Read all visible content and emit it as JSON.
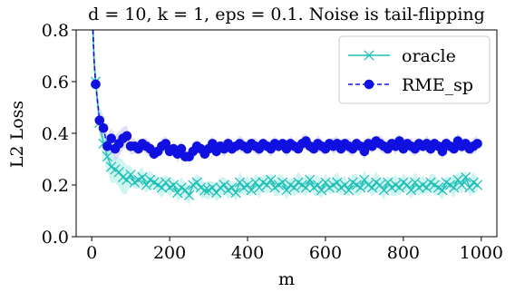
{
  "chart_data": {
    "type": "line",
    "title": "d = 10, k = 1, eps = 0.1. Noise is tail-flipping",
    "xlabel": "m",
    "ylabel": "L2 Loss",
    "xlim": [
      -40,
      1040
    ],
    "ylim": [
      0.0,
      0.8
    ],
    "xticks": [
      0,
      200,
      400,
      600,
      800,
      1000
    ],
    "yticks": [
      0.0,
      0.2,
      0.4,
      0.6,
      0.8
    ],
    "xtick_labels": [
      "0",
      "200",
      "400",
      "600",
      "800",
      "1000"
    ],
    "ytick_labels": [
      "0.0",
      "0.2",
      "0.4",
      "0.6",
      "0.8"
    ],
    "grid": false,
    "legend_position": "top-right",
    "x": [
      10,
      20,
      30,
      40,
      50,
      60,
      70,
      80,
      90,
      100,
      110,
      120,
      130,
      140,
      150,
      160,
      170,
      180,
      190,
      200,
      210,
      220,
      230,
      240,
      250,
      260,
      270,
      280,
      290,
      300,
      310,
      320,
      330,
      340,
      350,
      360,
      370,
      380,
      390,
      400,
      410,
      420,
      430,
      440,
      450,
      460,
      470,
      480,
      490,
      500,
      510,
      520,
      530,
      540,
      550,
      560,
      570,
      580,
      590,
      600,
      610,
      620,
      630,
      640,
      650,
      660,
      670,
      680,
      690,
      700,
      710,
      720,
      730,
      740,
      750,
      760,
      770,
      780,
      790,
      800,
      810,
      820,
      830,
      840,
      850,
      860,
      870,
      880,
      890,
      900,
      910,
      920,
      930,
      940,
      950,
      960,
      970,
      980,
      990
    ],
    "series": [
      {
        "name": "oracle",
        "color": "#20c0b8",
        "linestyle": "solid",
        "marker": "x",
        "values": [
          0.6,
          0.44,
          0.36,
          0.31,
          0.27,
          0.26,
          0.25,
          0.23,
          0.22,
          0.24,
          0.21,
          0.22,
          0.23,
          0.2,
          0.22,
          0.21,
          0.2,
          0.19,
          0.21,
          0.19,
          0.2,
          0.17,
          0.19,
          0.18,
          0.16,
          0.2,
          0.21,
          0.19,
          0.18,
          0.18,
          0.19,
          0.17,
          0.19,
          0.2,
          0.18,
          0.19,
          0.17,
          0.21,
          0.19,
          0.2,
          0.18,
          0.21,
          0.19,
          0.21,
          0.2,
          0.22,
          0.19,
          0.2,
          0.21,
          0.18,
          0.2,
          0.19,
          0.21,
          0.2,
          0.19,
          0.22,
          0.19,
          0.2,
          0.18,
          0.21,
          0.19,
          0.2,
          0.21,
          0.19,
          0.2,
          0.18,
          0.21,
          0.2,
          0.19,
          0.22,
          0.2,
          0.19,
          0.21,
          0.2,
          0.18,
          0.21,
          0.19,
          0.2,
          0.19,
          0.21,
          0.2,
          0.18,
          0.21,
          0.19,
          0.2,
          0.19,
          0.21,
          0.2,
          0.19,
          0.18,
          0.21,
          0.2,
          0.19,
          0.22,
          0.2,
          0.23,
          0.19,
          0.21,
          0.2
        ]
      },
      {
        "name": "RME_sp",
        "color": "#1010e0",
        "linestyle": "dashed",
        "marker": "o",
        "values": [
          0.59,
          0.45,
          0.42,
          0.35,
          0.38,
          0.34,
          0.36,
          0.38,
          0.39,
          0.35,
          0.35,
          0.34,
          0.36,
          0.35,
          0.34,
          0.32,
          0.33,
          0.35,
          0.36,
          0.33,
          0.34,
          0.32,
          0.34,
          0.31,
          0.31,
          0.33,
          0.35,
          0.34,
          0.32,
          0.34,
          0.36,
          0.33,
          0.35,
          0.34,
          0.36,
          0.34,
          0.35,
          0.36,
          0.35,
          0.34,
          0.36,
          0.35,
          0.34,
          0.36,
          0.35,
          0.34,
          0.36,
          0.35,
          0.36,
          0.34,
          0.36,
          0.35,
          0.34,
          0.36,
          0.37,
          0.35,
          0.34,
          0.36,
          0.35,
          0.34,
          0.36,
          0.35,
          0.36,
          0.34,
          0.36,
          0.35,
          0.34,
          0.36,
          0.35,
          0.33,
          0.36,
          0.35,
          0.37,
          0.36,
          0.35,
          0.34,
          0.36,
          0.35,
          0.37,
          0.34,
          0.36,
          0.35,
          0.34,
          0.36,
          0.35,
          0.36,
          0.34,
          0.36,
          0.35,
          0.33,
          0.36,
          0.35,
          0.34,
          0.37,
          0.35,
          0.36,
          0.34,
          0.35,
          0.36
        ]
      }
    ],
    "curve_start": {
      "x": [
        3,
        6,
        10
      ],
      "values": [
        0.8,
        0.68,
        0.59
      ]
    }
  }
}
